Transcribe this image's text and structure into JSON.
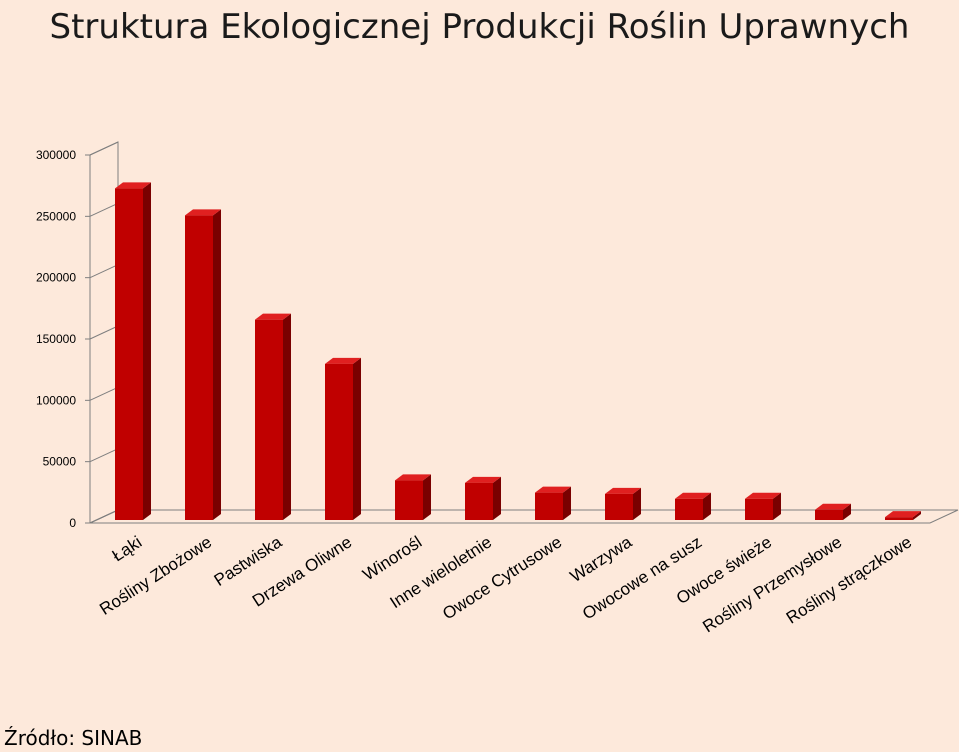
{
  "title": "Struktura Ekologicznej Produkcji Roślin Uprawnych",
  "source": "Źródło: SINAB",
  "colors": {
    "bar_front": "#c00000",
    "bar_side": "#7a0000",
    "bar_top": "#e02020",
    "background": "#fde9db",
    "axis": "#7f7f7f"
  },
  "chart_data": {
    "type": "bar",
    "categories": [
      "Łąki",
      "Rośliny Zbożowe",
      "Pastwiska",
      "Drzewa Oliwne",
      "Winorośl",
      "Inne wieloletnie",
      "Owoce Cytrusowe",
      "Warzywa",
      "Owocowe na susz",
      "Owoce świeże",
      "Rośliny Przemysłowe",
      "Rośliny strączkowe"
    ],
    "values": [
      277000,
      255000,
      170000,
      134000,
      39000,
      37000,
      29000,
      28000,
      24000,
      24000,
      15000,
      9000
    ],
    "yticks": [
      "0",
      "50000",
      "100000",
      "150000",
      "200000",
      "250000",
      "300000"
    ],
    "ylim": [
      0,
      300000
    ],
    "grid": false,
    "legend": "none"
  }
}
